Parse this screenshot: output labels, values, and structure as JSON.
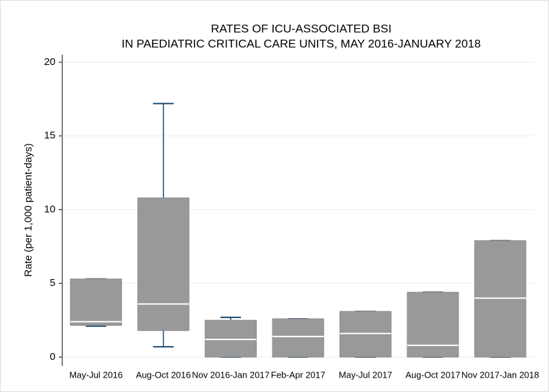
{
  "chart_data": {
    "type": "box",
    "title": [
      "RATES OF ICU-ASSOCIATED BSI",
      "IN PAEDIATRIC CRITICAL CARE UNITS, MAY 2016-JANUARY 2018"
    ],
    "y_label": "Rate (per 1,000 patient-days)",
    "categories": [
      "May-Jul 2016",
      "Aug-Oct 2016",
      "Nov 2016-Jan 2017",
      "Feb-Apr 2017",
      "May-Jul 2017",
      "Aug-Oct 2017",
      "Nov 2017-Jan 2018"
    ],
    "min": [
      2.1,
      0.7,
      0,
      0,
      0,
      0,
      0
    ],
    "q1": [
      2.15,
      1.8,
      0,
      0,
      0,
      0,
      0
    ],
    "median": [
      2.4,
      3.6,
      1.2,
      1.4,
      1.6,
      0.8,
      4.0
    ],
    "q3": [
      5.3,
      10.8,
      2.5,
      2.6,
      3.1,
      4.4,
      7.9
    ],
    "max": [
      5.3,
      17.2,
      2.7,
      2.6,
      3.1,
      4.4,
      7.9
    ],
    "box_color": "#999999",
    "median_color": "#ffffff",
    "whisker_color": "#1a476f",
    "ylim": [
      0,
      20
    ],
    "yticks": [
      0,
      5,
      10,
      15,
      20
    ],
    "grid": true
  }
}
